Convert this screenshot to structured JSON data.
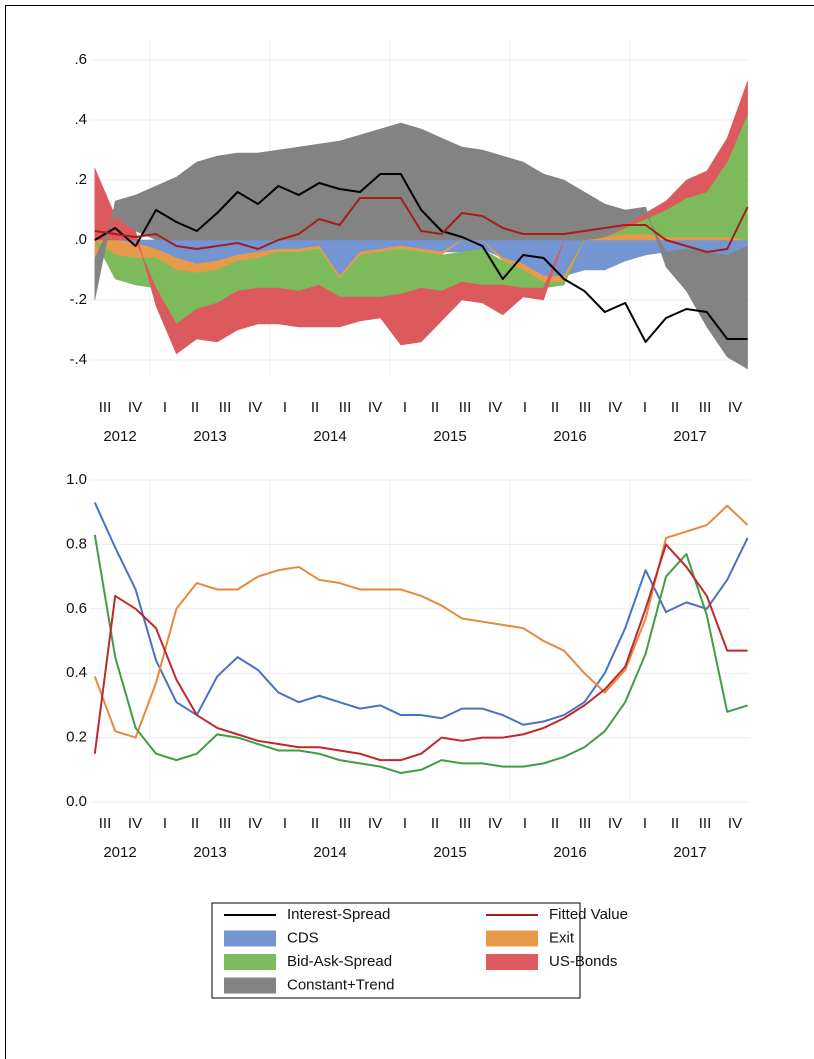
{
  "chart_data": [
    {
      "type": "stacked_area",
      "x": [
        2012.54,
        2012.71,
        2012.88,
        2013.05,
        2013.22,
        2013.39,
        2013.56,
        2013.73,
        2013.9,
        2014.07,
        2014.24,
        2014.41,
        2014.58,
        2014.75,
        2014.92,
        2015.09,
        2015.26,
        2015.43,
        2015.6,
        2015.77,
        2015.94,
        2016.11,
        2016.28,
        2016.45,
        2016.62,
        2016.79,
        2016.96,
        2017.13,
        2017.3,
        2017.47,
        2017.64,
        2017.81,
        2017.98
      ],
      "series": [
        {
          "name": "Interest-Spread",
          "type": "line",
          "color": "#000000",
          "values": [
            0.0,
            0.04,
            -0.02,
            0.1,
            0.06,
            0.03,
            0.09,
            0.16,
            0.12,
            0.18,
            0.15,
            0.19,
            0.17,
            0.16,
            0.22,
            0.22,
            0.1,
            0.03,
            0.01,
            -0.02,
            -0.13,
            -0.05,
            -0.06,
            -0.13,
            -0.17,
            -0.24,
            -0.21,
            -0.34,
            -0.26,
            -0.23,
            -0.24,
            -0.33,
            -0.33
          ]
        },
        {
          "name": "Fitted Value",
          "type": "line",
          "color": "#a51d1d",
          "values": [
            0.03,
            0.02,
            0.01,
            0.02,
            -0.02,
            -0.03,
            -0.02,
            -0.01,
            -0.03,
            0.0,
            0.02,
            0.07,
            0.05,
            0.14,
            0.14,
            0.14,
            0.03,
            0.02,
            0.09,
            0.08,
            0.04,
            0.02,
            0.02,
            0.02,
            0.03,
            0.04,
            0.05,
            0.05,
            0.0,
            -0.02,
            -0.04,
            -0.03,
            0.11
          ]
        },
        {
          "name": "CDS",
          "type": "area",
          "color": "#7395d2",
          "values": [
            0,
            0,
            -0.01,
            -0.03,
            -0.06,
            -0.08,
            -0.07,
            -0.05,
            -0.04,
            -0.03,
            -0.03,
            -0.02,
            -0.12,
            -0.04,
            -0.03,
            -0.02,
            -0.03,
            -0.04,
            -0.04,
            -0.03,
            -0.06,
            -0.08,
            -0.12,
            -0.12,
            -0.1,
            -0.1,
            -0.07,
            -0.05,
            -0.04,
            -0.03,
            -0.04,
            -0.05,
            -0.02
          ]
        },
        {
          "name": "Exit",
          "type": "area",
          "color": "#e89a4b",
          "values": [
            -0.06,
            -0.05,
            -0.05,
            -0.03,
            -0.04,
            -0.03,
            -0.03,
            -0.02,
            -0.02,
            -0.01,
            -0.01,
            -0.01,
            -0.01,
            -0.01,
            -0.01,
            -0.01,
            -0.01,
            -0.01,
            0,
            0,
            -0.01,
            -0.02,
            -0.02,
            -0.02,
            0,
            0.01,
            0.02,
            0.02,
            0.01,
            0.01,
            0.01,
            0.01,
            0
          ]
        },
        {
          "name": "Bid-Ask-Spread",
          "type": "area",
          "color": "#7dba5c",
          "values": [
            0,
            -0.08,
            -0.09,
            -0.1,
            -0.18,
            -0.12,
            -0.11,
            -0.1,
            -0.1,
            -0.12,
            -0.13,
            -0.12,
            -0.06,
            -0.14,
            -0.15,
            -0.15,
            -0.12,
            -0.12,
            -0.1,
            -0.12,
            -0.08,
            -0.06,
            -0.02,
            -0.01,
            0,
            0,
            0.02,
            0.05,
            0.09,
            0.13,
            0.15,
            0.25,
            0.42
          ]
        },
        {
          "name": "US-Bonds",
          "type": "area",
          "color": "#dc5a5e",
          "values": [
            0.24,
            0.08,
            0.03,
            -0.06,
            -0.1,
            -0.1,
            -0.13,
            -0.13,
            -0.12,
            -0.12,
            -0.12,
            -0.14,
            -0.1,
            -0.08,
            -0.07,
            -0.17,
            -0.18,
            -0.1,
            -0.06,
            -0.06,
            -0.1,
            -0.03,
            -0.04,
            0,
            0,
            0,
            0.01,
            0.02,
            0.03,
            0.06,
            0.07,
            0.08,
            0.11
          ]
        },
        {
          "name": "Constant+Trend",
          "type": "area",
          "color": "#838383",
          "values": [
            -0.14,
            0.05,
            0.12,
            0.18,
            0.21,
            0.26,
            0.28,
            0.29,
            0.29,
            0.3,
            0.31,
            0.32,
            0.33,
            0.35,
            0.37,
            0.39,
            0.37,
            0.34,
            0.31,
            0.3,
            0.28,
            0.26,
            0.22,
            0.2,
            0.16,
            0.11,
            0.05,
            0.02,
            -0.05,
            -0.14,
            -0.25,
            -0.34,
            -0.41
          ]
        }
      ],
      "xlim": [
        2012.5,
        2018.0
      ],
      "xticks": [
        {
          "value": 2012.625,
          "label": "III"
        },
        {
          "value": 2012.875,
          "label": "IV"
        },
        {
          "value": 2013.125,
          "label": "I"
        },
        {
          "value": 2013.375,
          "label": "II"
        },
        {
          "value": 2013.625,
          "label": "III"
        },
        {
          "value": 2013.875,
          "label": "IV"
        },
        {
          "value": 2014.125,
          "label": "I"
        },
        {
          "value": 2014.375,
          "label": "II"
        },
        {
          "value": 2014.625,
          "label": "III"
        },
        {
          "value": 2014.875,
          "label": "IV"
        },
        {
          "value": 2015.125,
          "label": "I"
        },
        {
          "value": 2015.375,
          "label": "II"
        },
        {
          "value": 2015.625,
          "label": "III"
        },
        {
          "value": 2015.875,
          "label": "IV"
        },
        {
          "value": 2016.125,
          "label": "I"
        },
        {
          "value": 2016.375,
          "label": "II"
        },
        {
          "value": 2016.625,
          "label": "III"
        },
        {
          "value": 2016.875,
          "label": "IV"
        },
        {
          "value": 2017.125,
          "label": "I"
        },
        {
          "value": 2017.375,
          "label": "II"
        },
        {
          "value": 2017.625,
          "label": "III"
        },
        {
          "value": 2017.875,
          "label": "IV"
        }
      ],
      "year_ticks": [
        {
          "value": 2012.75,
          "label": "2012"
        },
        {
          "value": 2013.5,
          "label": "2013"
        },
        {
          "value": 2014.5,
          "label": "2014"
        },
        {
          "value": 2015.5,
          "label": "2015"
        },
        {
          "value": 2016.5,
          "label": "2016"
        },
        {
          "value": 2017.5,
          "label": "2017"
        }
      ],
      "xgrid": [
        2013,
        2014,
        2015,
        2016,
        2017
      ],
      "ylim": [
        -0.45,
        0.67
      ],
      "yticks": [
        {
          "value": 0.6,
          "label": ".6"
        },
        {
          "value": 0.4,
          "label": ".4"
        },
        {
          "value": 0.2,
          "label": ".2"
        },
        {
          "value": 0,
          "label": ".0"
        },
        {
          "value": -0.2,
          "label": "-.2"
        },
        {
          "value": -0.4,
          "label": "-.4"
        }
      ],
      "grid": true
    },
    {
      "type": "line",
      "x": [
        2012.54,
        2012.71,
        2012.88,
        2013.05,
        2013.22,
        2013.39,
        2013.56,
        2013.73,
        2013.9,
        2014.07,
        2014.24,
        2014.41,
        2014.58,
        2014.75,
        2014.92,
        2015.09,
        2015.26,
        2015.43,
        2015.6,
        2015.77,
        2015.94,
        2016.11,
        2016.28,
        2016.45,
        2016.62,
        2016.79,
        2016.96,
        2017.13,
        2017.3,
        2017.47,
        2017.64,
        2017.81,
        2017.98
      ],
      "series": [
        {
          "color": "#4a72c0",
          "values": [
            0.93,
            0.79,
            0.66,
            0.44,
            0.31,
            0.27,
            0.39,
            0.45,
            0.41,
            0.34,
            0.31,
            0.33,
            0.31,
            0.29,
            0.3,
            0.27,
            0.27,
            0.26,
            0.29,
            0.29,
            0.27,
            0.24,
            0.25,
            0.27,
            0.31,
            0.4,
            0.54,
            0.72,
            0.59,
            0.62,
            0.6,
            0.69,
            0.82
          ]
        },
        {
          "color": "#e58a3c",
          "values": [
            0.39,
            0.22,
            0.2,
            0.37,
            0.6,
            0.68,
            0.66,
            0.66,
            0.7,
            0.72,
            0.73,
            0.69,
            0.68,
            0.66,
            0.66,
            0.66,
            0.64,
            0.61,
            0.57,
            0.56,
            0.55,
            0.54,
            0.5,
            0.47,
            0.4,
            0.34,
            0.41,
            0.57,
            0.82,
            0.84,
            0.86,
            0.92,
            0.86
          ]
        },
        {
          "color": "#3f9e44",
          "values": [
            0.83,
            0.45,
            0.23,
            0.15,
            0.13,
            0.15,
            0.21,
            0.2,
            0.18,
            0.16,
            0.16,
            0.15,
            0.13,
            0.12,
            0.11,
            0.09,
            0.1,
            0.13,
            0.12,
            0.12,
            0.11,
            0.11,
            0.12,
            0.14,
            0.17,
            0.22,
            0.31,
            0.46,
            0.7,
            0.77,
            0.58,
            0.28,
            0.3
          ]
        },
        {
          "color": "#c0282c",
          "values": [
            0.15,
            0.64,
            0.6,
            0.54,
            0.38,
            0.27,
            0.23,
            0.21,
            0.19,
            0.18,
            0.17,
            0.17,
            0.16,
            0.15,
            0.13,
            0.13,
            0.15,
            0.2,
            0.19,
            0.2,
            0.2,
            0.21,
            0.23,
            0.26,
            0.3,
            0.35,
            0.42,
            0.6,
            0.8,
            0.73,
            0.64,
            0.47,
            0.47
          ]
        }
      ],
      "xlim": [
        2012.5,
        2018.0
      ],
      "xticks": [
        {
          "value": 2012.625,
          "label": "III"
        },
        {
          "value": 2012.875,
          "label": "IV"
        },
        {
          "value": 2013.125,
          "label": "I"
        },
        {
          "value": 2013.375,
          "label": "II"
        },
        {
          "value": 2013.625,
          "label": "III"
        },
        {
          "value": 2013.875,
          "label": "IV"
        },
        {
          "value": 2014.125,
          "label": "I"
        },
        {
          "value": 2014.375,
          "label": "II"
        },
        {
          "value": 2014.625,
          "label": "III"
        },
        {
          "value": 2014.875,
          "label": "IV"
        },
        {
          "value": 2015.125,
          "label": "I"
        },
        {
          "value": 2015.375,
          "label": "II"
        },
        {
          "value": 2015.625,
          "label": "III"
        },
        {
          "value": 2015.875,
          "label": "IV"
        },
        {
          "value": 2016.125,
          "label": "I"
        },
        {
          "value": 2016.375,
          "label": "II"
        },
        {
          "value": 2016.625,
          "label": "III"
        },
        {
          "value": 2016.875,
          "label": "IV"
        },
        {
          "value": 2017.125,
          "label": "I"
        },
        {
          "value": 2017.375,
          "label": "II"
        },
        {
          "value": 2017.625,
          "label": "III"
        },
        {
          "value": 2017.875,
          "label": "IV"
        }
      ],
      "year_ticks": [
        {
          "value": 2012.75,
          "label": "2012"
        },
        {
          "value": 2013.5,
          "label": "2013"
        },
        {
          "value": 2014.5,
          "label": "2014"
        },
        {
          "value": 2015.5,
          "label": "2015"
        },
        {
          "value": 2016.5,
          "label": "2016"
        },
        {
          "value": 2017.5,
          "label": "2017"
        }
      ],
      "xgrid": [
        2013,
        2014,
        2015,
        2016,
        2017
      ],
      "ylim": [
        0,
        1
      ],
      "yticks": [
        {
          "value": 0,
          "label": "0.0"
        },
        {
          "value": 0.2,
          "label": "0.2"
        },
        {
          "value": 0.4,
          "label": "0.4"
        },
        {
          "value": 0.6,
          "label": "0.6"
        },
        {
          "value": 0.8,
          "label": "0.8"
        },
        {
          "value": 1,
          "label": "1.0"
        }
      ],
      "grid": true
    }
  ]
}
